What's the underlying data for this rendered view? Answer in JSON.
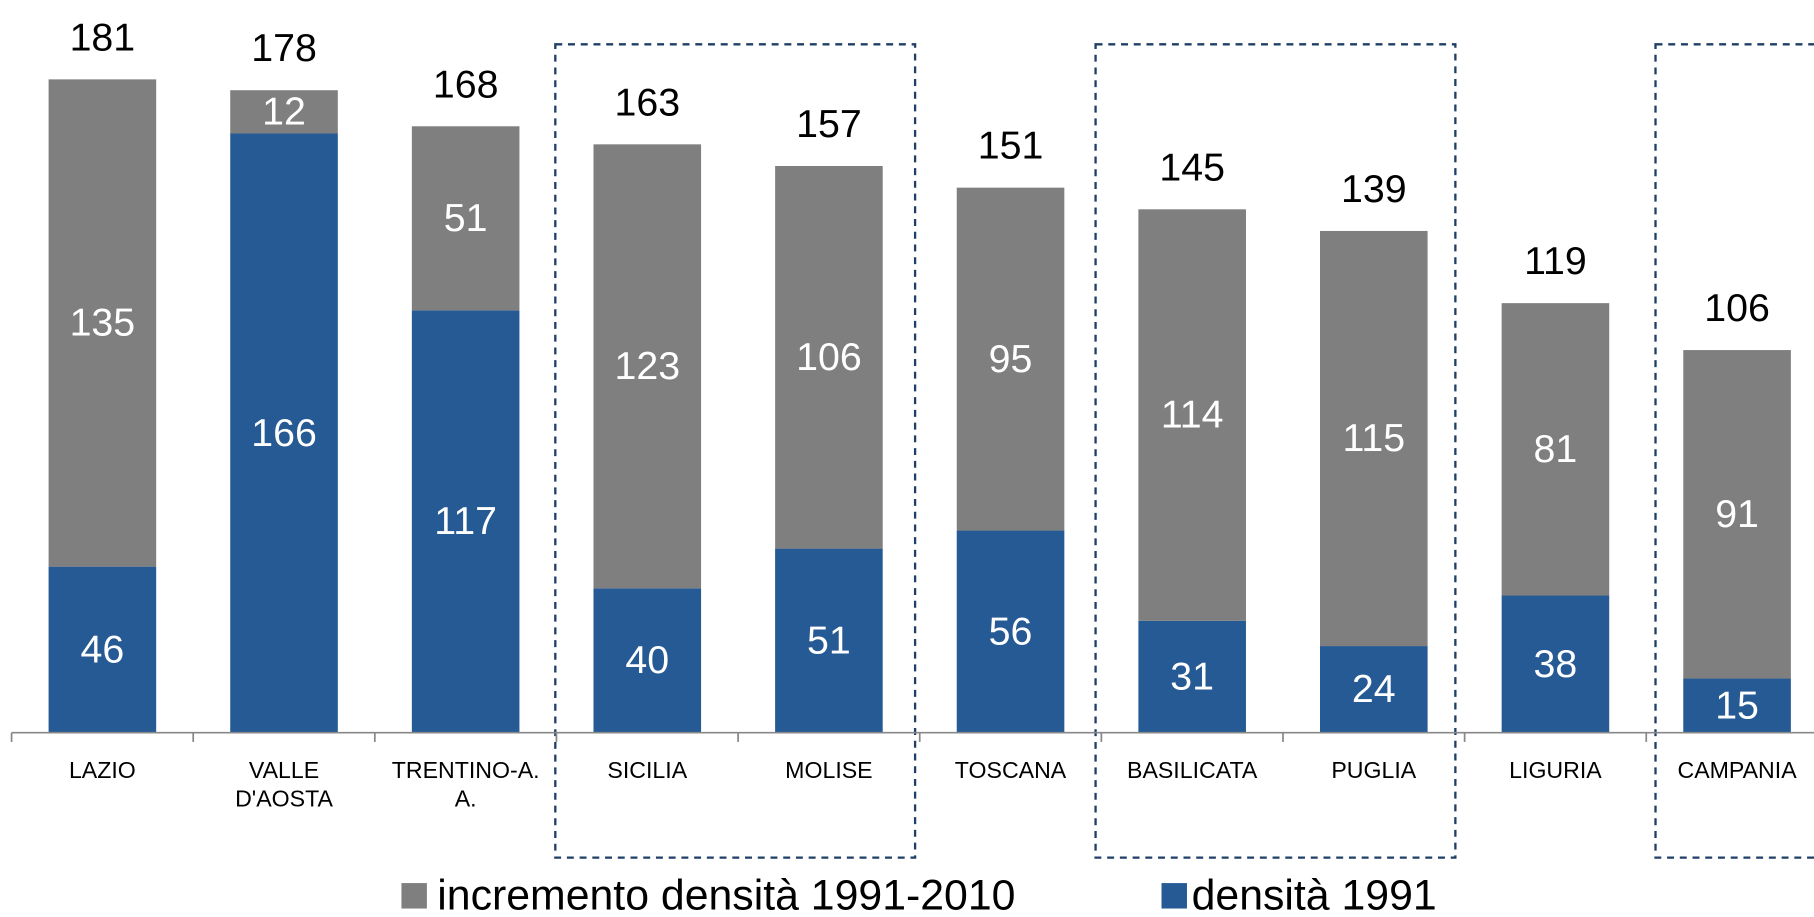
{
  "chart_data": {
    "type": "stacked_bar",
    "categories": [
      "LAZIO",
      "VALLE D'AOSTA",
      "TRENTINO-A. A.",
      "SICILIA",
      "MOLISE",
      "TOSCANA",
      "BASILICATA",
      "PUGLIA",
      "LIGURIA",
      "CAMPANIA"
    ],
    "series": [
      {
        "name": "densità 1991",
        "color": "#265a94",
        "values": [
          46,
          166,
          117,
          40,
          51,
          56,
          31,
          24,
          38,
          15
        ]
      },
      {
        "name": "incremento densità 1991-2010",
        "color": "#7f7f7f",
        "values": [
          135,
          12,
          51,
          123,
          106,
          95,
          114,
          115,
          81,
          91
        ]
      }
    ],
    "totals": [
      181,
      178,
      168,
      163,
      157,
      151,
      145,
      139,
      119,
      106
    ],
    "ylim": [
      0,
      200
    ]
  }
}
